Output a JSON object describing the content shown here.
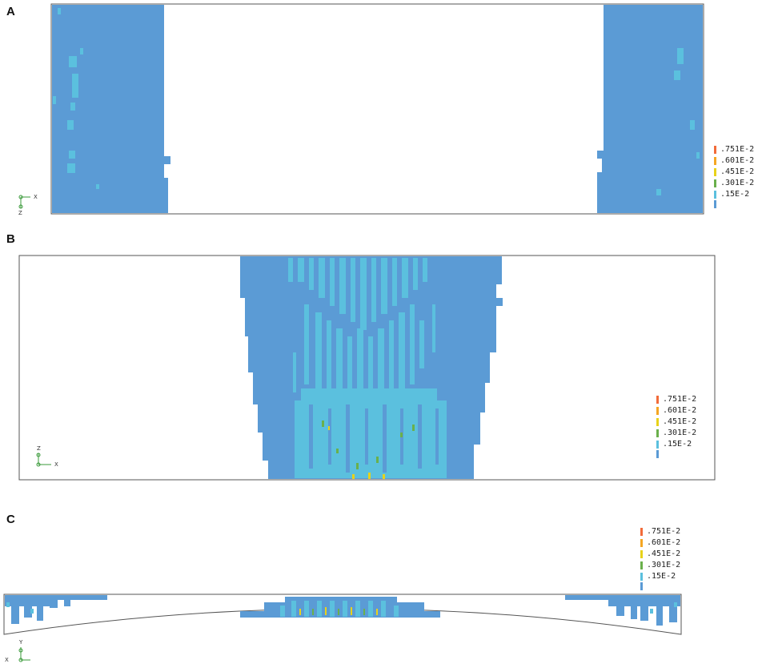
{
  "colors": {
    "band_0": "#5b9bd5",
    "band_1": "#5bc0de",
    "band_2": "#6ab04c",
    "band_3": "#e8d21a",
    "band_4": "#f5a623",
    "band_5": "#f26b3a",
    "outline": "#555555"
  },
  "legend": {
    "entries": [
      {
        "label": ".751E-2",
        "color": "#f26b3a"
      },
      {
        "label": ".601E-2",
        "color": "#f5a623"
      },
      {
        "label": ".451E-2",
        "color": "#e8d21a"
      },
      {
        "label": ".301E-2",
        "color": "#6ab04c"
      },
      {
        "label": ".15E-2",
        "color": "#5bc0de"
      }
    ],
    "base_color": "#5b9bd5"
  },
  "panels": [
    {
      "id": "A",
      "label": "A",
      "axis": {
        "h": "X",
        "v": "Z"
      }
    },
    {
      "id": "B",
      "label": "B",
      "axis": {
        "h": "X",
        "v": "Z"
      }
    },
    {
      "id": "C",
      "label": "C",
      "axis": {
        "h": "X",
        "v": "Y"
      }
    }
  ]
}
